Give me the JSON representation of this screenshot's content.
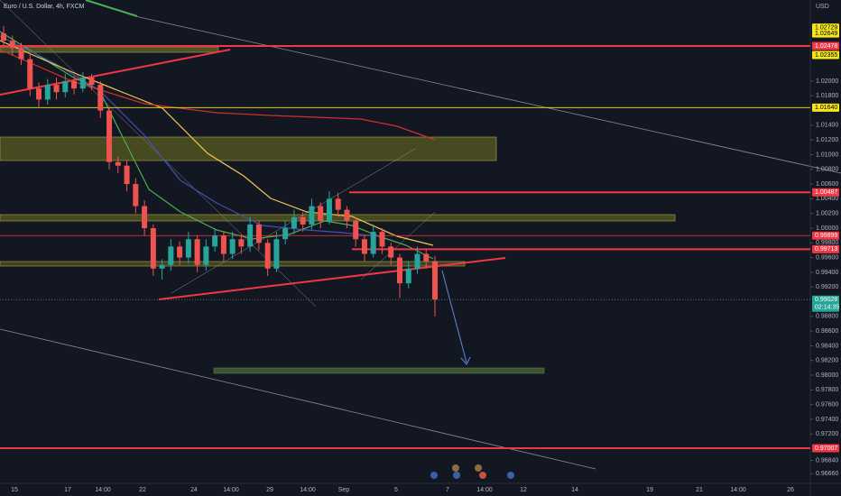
{
  "chart_data": {
    "type": "candlestick",
    "title": "Euro / U.S. Dollar, 4h, FXCM",
    "currency": "USD",
    "up_color": "#26a69a",
    "down_color": "#ef5350",
    "open": [
      1.0265,
      1.0255,
      1.0245,
      1.023,
      1.019,
      1.0175,
      1.0195,
      1.0185,
      1.02,
      1.019,
      1.0205,
      1.0195,
      1.016,
      1.009,
      1.0085,
      1.006,
      1.003,
      1.0,
      0.9945,
      0.995,
      0.9975,
      0.996,
      0.9985,
      0.995,
      0.9975,
      0.999,
      0.9965,
      0.9985,
      0.9975,
      1.0005,
      0.998,
      0.9945,
      0.9985,
      1.0,
      1.0015,
      1.0005,
      1.003,
      1.001,
      1.004,
      1.0025,
      1.001,
      0.9985,
      0.9965,
      0.9995,
      0.9975,
      0.996,
      0.9925,
      0.9945,
      0.9965,
      0.9955
    ],
    "high": [
      1.0275,
      1.0262,
      1.0252,
      1.0238,
      1.0198,
      1.0203,
      1.0205,
      1.021,
      1.0207,
      1.0212,
      1.021,
      1.02,
      1.0165,
      1.0098,
      1.0092,
      1.0068,
      1.0038,
      1.0005,
      0.9958,
      0.9985,
      0.9982,
      0.9995,
      0.999,
      0.9985,
      1.0,
      0.9995,
      0.9995,
      0.9992,
      1.0015,
      1.001,
      0.9985,
      0.9995,
      1.001,
      1.0025,
      1.0022,
      1.004,
      1.0035,
      1.005,
      1.0048,
      1.003,
      1.0015,
      0.999,
      1.0005,
      1.0,
      0.998,
      0.9965,
      0.9955,
      0.9975,
      0.9972,
      0.9962
    ],
    "low": [
      1.0245,
      1.0235,
      1.0222,
      1.018,
      1.0165,
      1.0168,
      1.0175,
      1.0178,
      1.0182,
      1.0185,
      1.0188,
      1.015,
      1.008,
      1.0075,
      1.005,
      1.002,
      0.999,
      0.9935,
      0.993,
      0.9942,
      0.995,
      0.9952,
      0.994,
      0.9942,
      0.9968,
      0.9955,
      0.9958,
      0.9965,
      0.9968,
      0.997,
      0.9935,
      0.994,
      0.9978,
      0.9992,
      0.9995,
      0.9998,
      1.0,
      1.0005,
      1.0015,
      1.0,
      0.9975,
      0.9955,
      0.996,
      0.9965,
      0.995,
      0.9905,
      0.9918,
      0.9938,
      0.9945,
      0.988
    ],
    "close": [
      1.0255,
      1.0245,
      1.023,
      1.019,
      1.0175,
      1.0195,
      1.0185,
      1.02,
      1.019,
      1.0205,
      1.0195,
      1.016,
      1.009,
      1.0085,
      1.006,
      1.003,
      1.0,
      0.9945,
      0.995,
      0.9975,
      0.996,
      0.9985,
      0.995,
      0.9975,
      0.999,
      0.9965,
      0.9985,
      0.9975,
      1.0005,
      0.998,
      0.9945,
      0.9985,
      1.0,
      1.0015,
      1.0005,
      1.003,
      1.001,
      1.004,
      1.0025,
      1.001,
      0.9985,
      0.9965,
      0.9995,
      0.9975,
      0.996,
      0.9925,
      0.9945,
      0.9965,
      0.9955,
      0.9903
    ],
    "ylim": [
      0.96528,
      1.03104
    ],
    "yticks": [
      {
        "value": 1.02,
        "label": "1.02000"
      },
      {
        "value": 1.018,
        "label": "1.01800"
      },
      {
        "value": 1.014,
        "label": "1.01400"
      },
      {
        "value": 1.012,
        "label": "1.01200"
      },
      {
        "value": 1.01,
        "label": "1.01000"
      },
      {
        "value": 1.008,
        "label": "1.00800"
      },
      {
        "value": 1.006,
        "label": "1.00600"
      },
      {
        "value": 1.004,
        "label": "1.00400"
      },
      {
        "value": 1.002,
        "label": "1.00200"
      },
      {
        "value": 1.0,
        "label": "1.00000"
      },
      {
        "value": 0.998,
        "label": "0.99800"
      },
      {
        "value": 0.996,
        "label": "0.99600"
      },
      {
        "value": 0.994,
        "label": "0.99400"
      },
      {
        "value": 0.992,
        "label": "0.99200"
      },
      {
        "value": 0.988,
        "label": "0.98800"
      },
      {
        "value": 0.986,
        "label": "0.98600"
      },
      {
        "value": 0.984,
        "label": "0.98400"
      },
      {
        "value": 0.982,
        "label": "0.98200"
      },
      {
        "value": 0.98,
        "label": "0.98000"
      },
      {
        "value": 0.978,
        "label": "0.97800"
      },
      {
        "value": 0.976,
        "label": "0.97600"
      },
      {
        "value": 0.974,
        "label": "0.97400"
      },
      {
        "value": 0.972,
        "label": "0.97200"
      },
      {
        "value": 0.9684,
        "label": "0.96840"
      },
      {
        "value": 0.9666,
        "label": "0.96660"
      }
    ],
    "price_labels": [
      {
        "value": 1.02729,
        "label": "1.02729",
        "color": "#f5e61f"
      },
      {
        "value": 1.02649,
        "label": "1.02649",
        "color": "#f5e61f"
      },
      {
        "value": 1.02478,
        "label": "1.02478",
        "color": "#f23645"
      },
      {
        "value": 1.02355,
        "label": "1.02355",
        "color": "#f5e61f"
      },
      {
        "value": 1.0164,
        "label": "1.01640",
        "color": "#f5e61f"
      },
      {
        "value": 1.00487,
        "label": "1.00487",
        "color": "#f23645"
      },
      {
        "value": 0.99899,
        "label": "0.99899",
        "color": "#f23645"
      },
      {
        "value": 0.99713,
        "label": "0.99713",
        "color": "#f23645"
      },
      {
        "value": 0.99028,
        "label": "0.99028",
        "color": "#26a69a",
        "sub": "02:14:35"
      },
      {
        "value": 0.97007,
        "label": "0.97007",
        "color": "#f23645"
      }
    ],
    "x_labels": [
      "15",
      "17",
      "14:00",
      "22",
      "24",
      "14:00",
      "29",
      "14:00",
      "Sep",
      "5",
      "7",
      "14:00",
      "12",
      "14",
      "19",
      "21",
      "14:00",
      "26"
    ]
  }
}
